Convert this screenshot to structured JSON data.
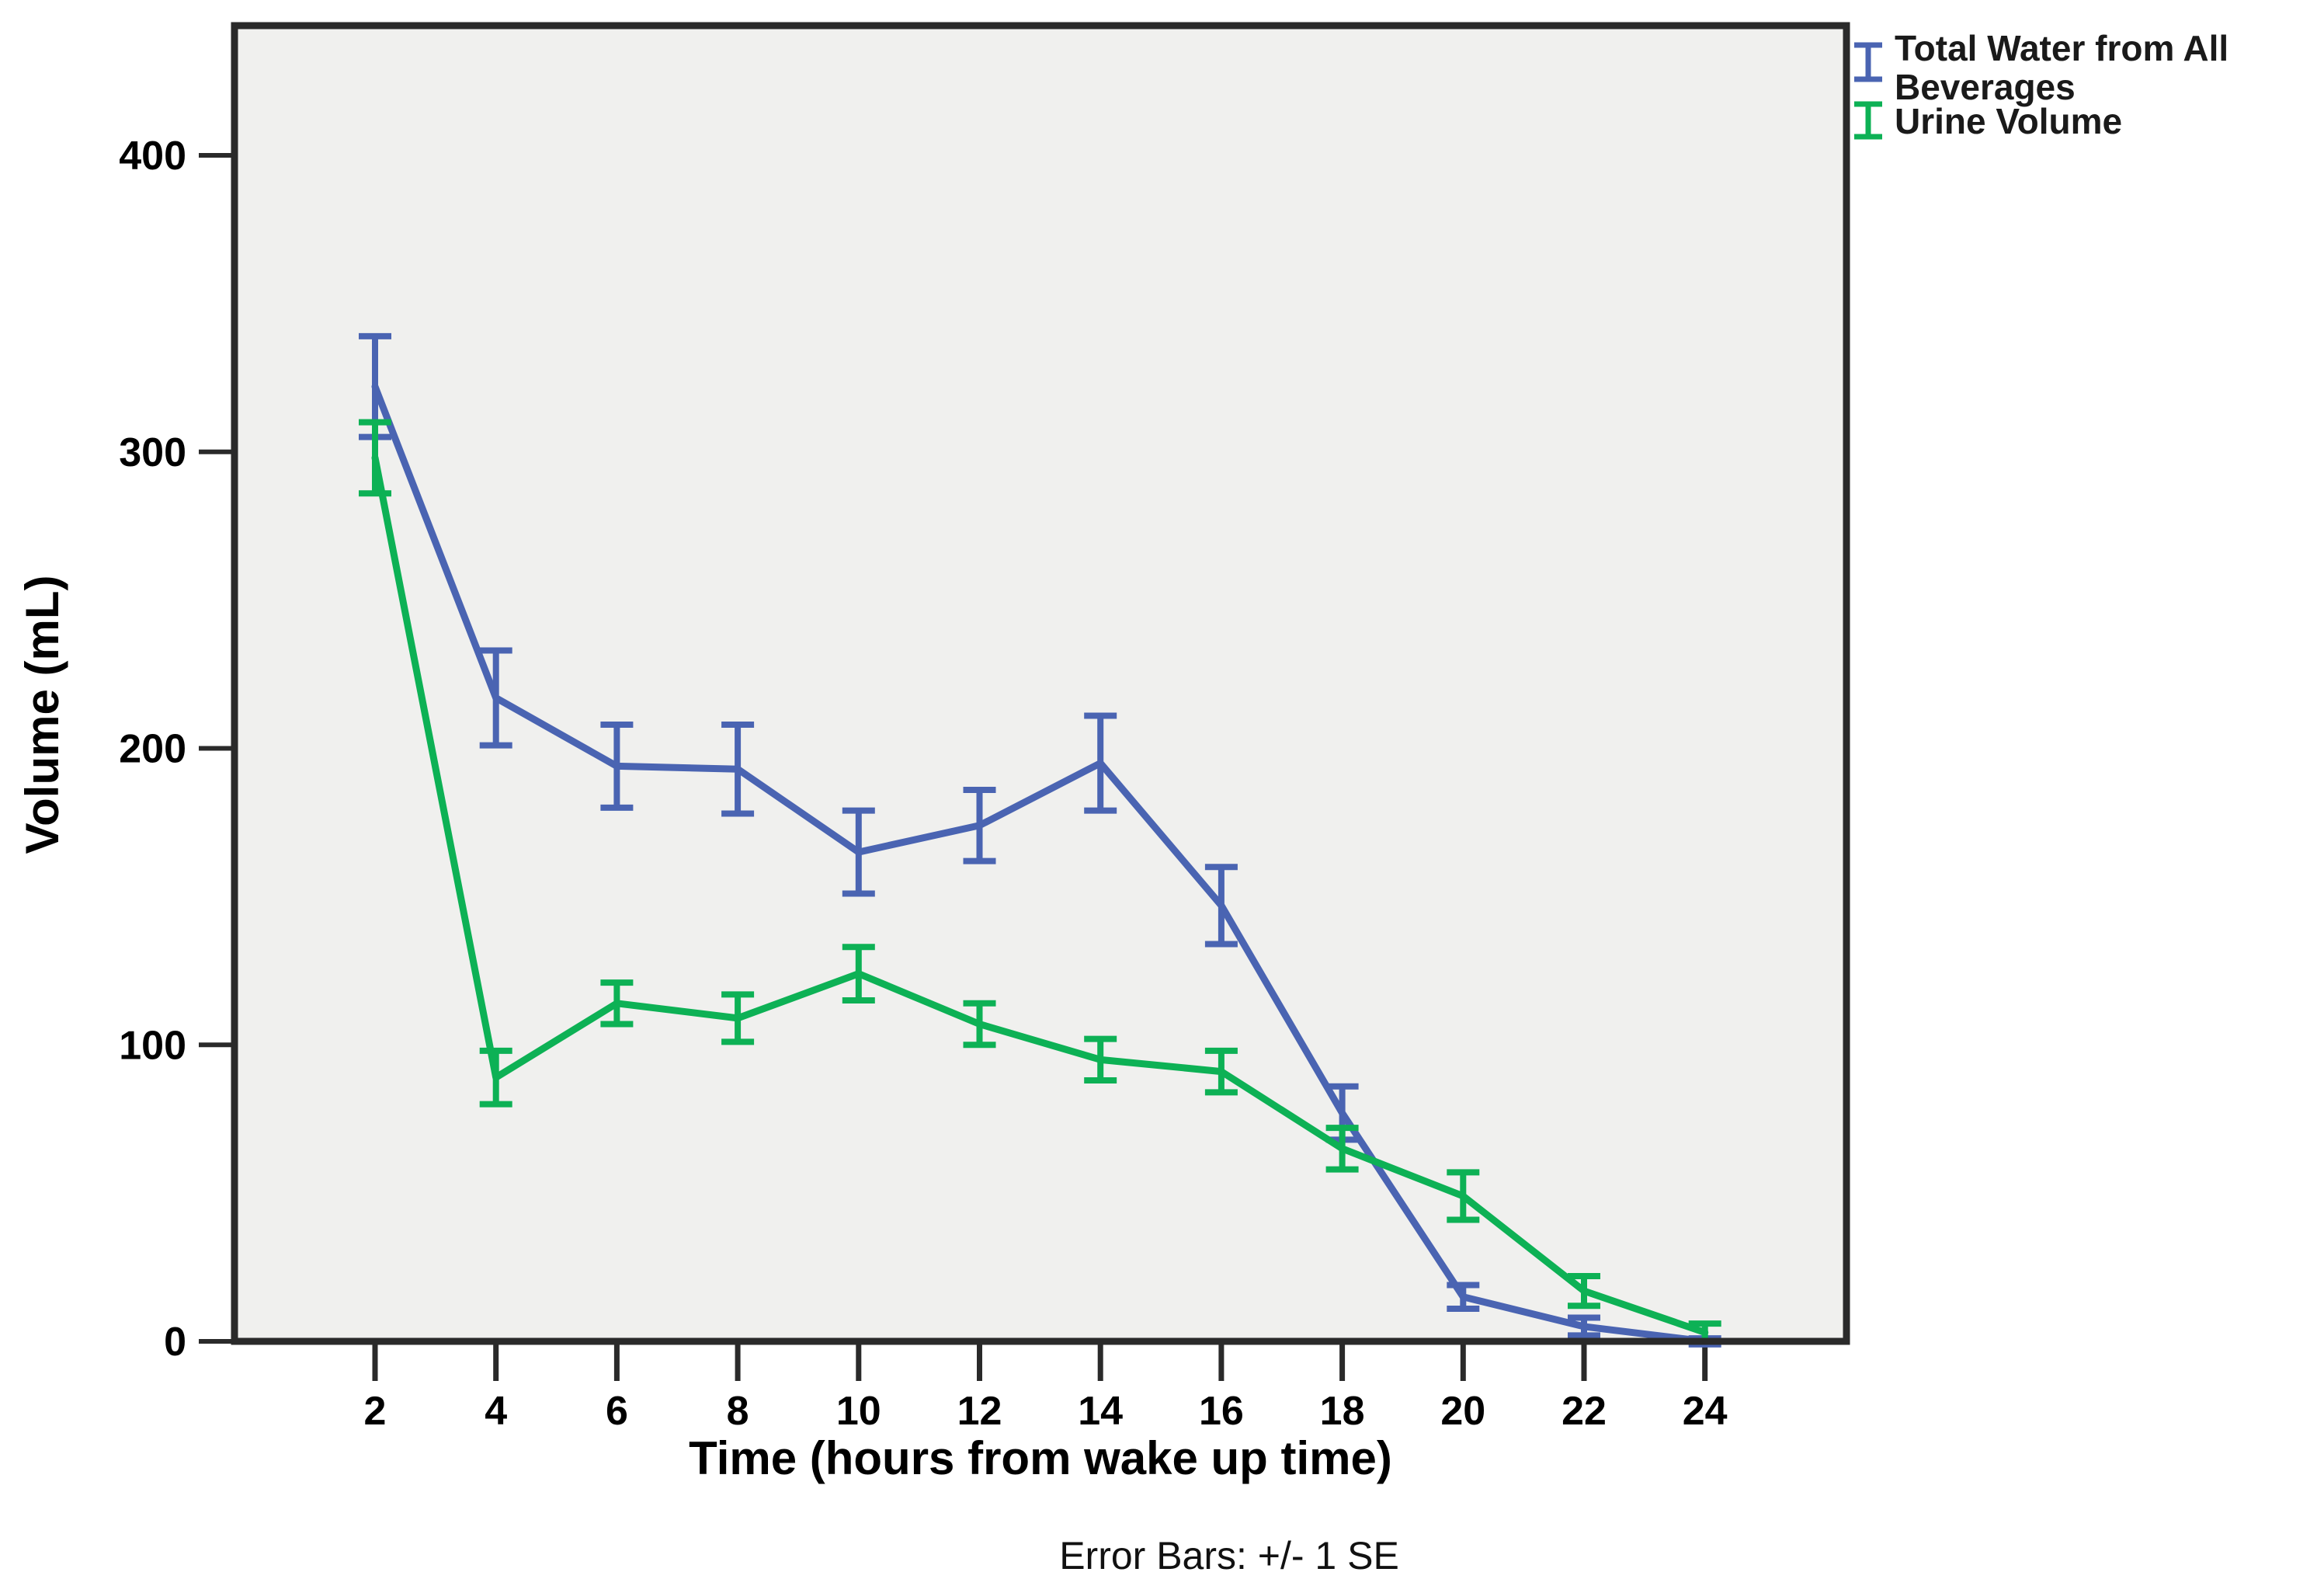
{
  "page": {
    "background": "#ffffff"
  },
  "chart_data": {
    "type": "line",
    "title": "",
    "xlabel": "Time (hours from wake up time)",
    "ylabel": "Volume (mL)",
    "footnote": "Error Bars: +/- 1 SE",
    "x": [
      2,
      4,
      6,
      8,
      10,
      12,
      14,
      16,
      18,
      20,
      22,
      24
    ],
    "x_tick_labels": [
      "2",
      "4",
      "6",
      "8",
      "10",
      "12",
      "14",
      "16",
      "18",
      "20",
      "22",
      "24"
    ],
    "y_ticks": [
      0,
      100,
      200,
      300,
      400
    ],
    "ylim": [
      0,
      440
    ],
    "xlim": [
      0,
      26
    ],
    "grid": false,
    "legend_position": "outside-top-right",
    "plot_bg": "#f0f0ee",
    "frame_color": "#2a2a2a",
    "series": [
      {
        "name": "Total Water from All Beverages",
        "legend_lines": [
          "Total Water from All",
          "Beverages"
        ],
        "color": "#4a64b2",
        "values": [
          322,
          217,
          194,
          193,
          165,
          174,
          195,
          147,
          77,
          15,
          5,
          0
        ],
        "se": [
          17,
          16,
          14,
          15,
          14,
          12,
          16,
          13,
          9,
          4,
          3,
          1
        ]
      },
      {
        "name": "Urine Volume",
        "legend_lines": [
          "Urine Volume"
        ],
        "color": "#0db155",
        "values": [
          298,
          89,
          114,
          109,
          124,
          107,
          95,
          91,
          65,
          49,
          17,
          3
        ],
        "se": [
          12,
          9,
          7,
          8,
          9,
          7,
          7,
          7,
          7,
          8,
          5,
          3
        ]
      }
    ]
  }
}
